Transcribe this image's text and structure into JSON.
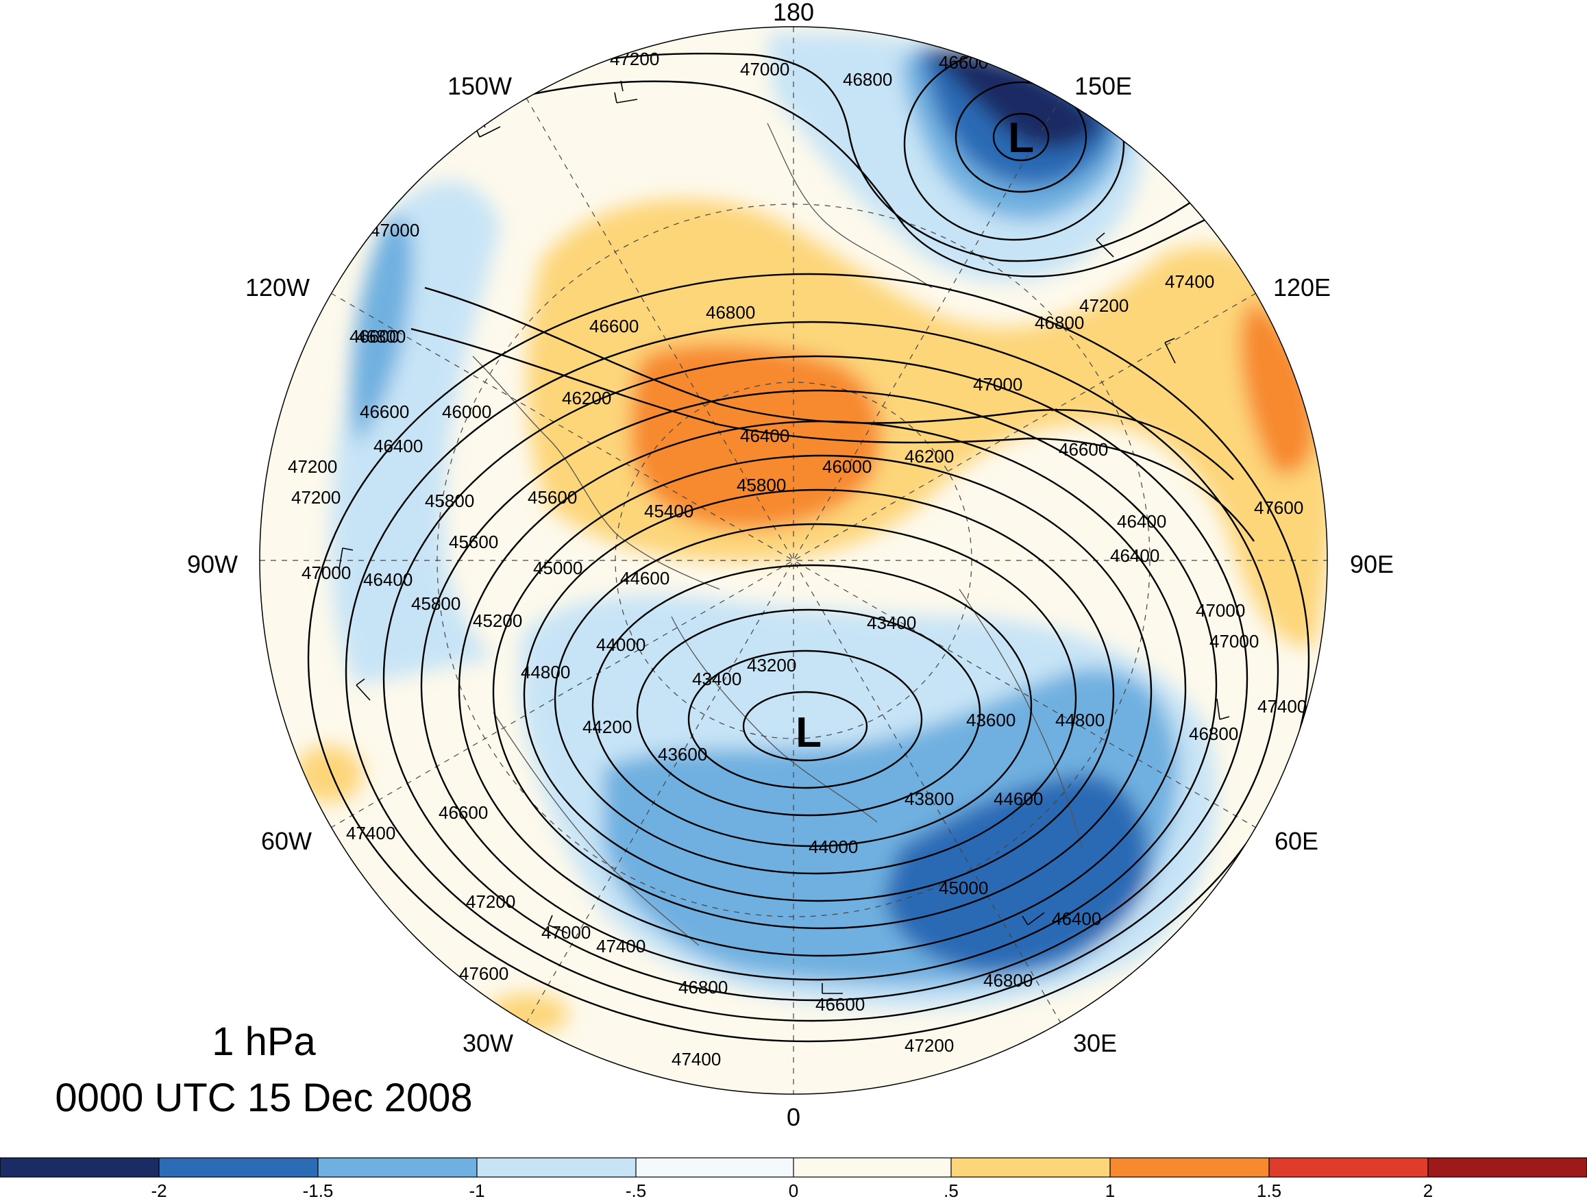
{
  "title": {
    "level": "1 hPa",
    "datetime": "0000 UTC 15 Dec 2008"
  },
  "longitude_labels": [
    {
      "key": "180",
      "text": "180"
    },
    {
      "key": "150W",
      "text": "150W"
    },
    {
      "key": "150E",
      "text": "150E"
    },
    {
      "key": "120W",
      "text": "120W"
    },
    {
      "key": "120E",
      "text": "120E"
    },
    {
      "key": "90W",
      "text": "90W"
    },
    {
      "key": "90E",
      "text": "90E"
    },
    {
      "key": "60W",
      "text": "60W"
    },
    {
      "key": "60E",
      "text": "60E"
    },
    {
      "key": "30W",
      "text": "30W"
    },
    {
      "key": "30E",
      "text": "30E"
    },
    {
      "key": "0",
      "text": "0"
    }
  ],
  "low_markers": [
    "L",
    "L"
  ],
  "contour_labels": [
    "47200",
    "47000",
    "46800",
    "46600",
    "46800",
    "46600",
    "46200",
    "46400",
    "46000",
    "45800",
    "45600",
    "45400",
    "46200",
    "46000",
    "45800",
    "46400",
    "47200",
    "45000",
    "44600",
    "45200",
    "44000",
    "44800",
    "44200",
    "43400",
    "43200",
    "43400",
    "43600",
    "43800",
    "44000",
    "43600",
    "44800",
    "44600",
    "45000",
    "46400",
    "46800",
    "46600",
    "47000",
    "47200",
    "47400",
    "47600",
    "46600",
    "46800",
    "47200",
    "47400",
    "47000",
    "46800",
    "47400",
    "46600",
    "46400",
    "47000",
    "47600",
    "46800",
    "47400",
    "47000",
    "46600",
    "47200",
    "47000",
    "46800",
    "46600",
    "46400",
    "47200",
    "47000",
    "46400",
    "45800",
    "45600",
    "47400"
  ],
  "colorbar": {
    "ticks": [
      "-2",
      "-1.5",
      "-1",
      "-.5",
      "0",
      ".5",
      "1",
      "1.5",
      "2"
    ],
    "colors": [
      "#1b2b63",
      "#2c6bb5",
      "#6fb0e0",
      "#c7e4f6",
      "#f4f9fd",
      "#fdf9ec",
      "#fdd67a",
      "#f7892f",
      "#e03c2c",
      "#9e1a1a"
    ]
  }
}
